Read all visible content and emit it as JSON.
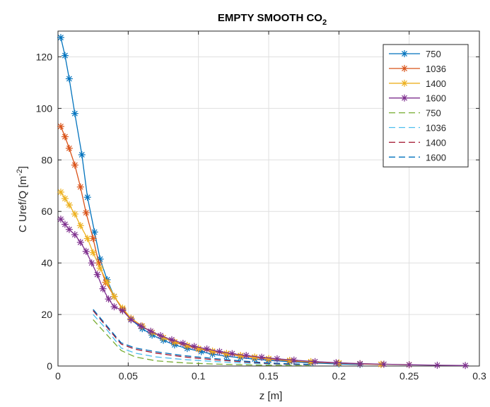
{
  "chart_data": {
    "type": "line",
    "title": "EMPTY SMOOTH CO",
    "title_subscript": "2",
    "xlabel": "z [m]",
    "ylabel": "C Uref/Q [m",
    "ylabel_superscript": "-2",
    "ylabel_suffix": "]",
    "xlim": [
      0,
      0.3
    ],
    "ylim": [
      0,
      130
    ],
    "xticks": [
      0,
      0.05,
      0.1,
      0.15,
      0.2,
      0.25,
      0.3
    ],
    "xtick_labels": [
      "0",
      "0.05",
      "0.1",
      "0.15",
      "0.2",
      "0.25",
      "0.3"
    ],
    "yticks": [
      0,
      20,
      40,
      60,
      80,
      100,
      120
    ],
    "ytick_labels": [
      "0",
      "20",
      "40",
      "60",
      "80",
      "100",
      "120"
    ],
    "grid": true,
    "legend_position": "top-right",
    "series": [
      {
        "name": "750",
        "color": "#0072BD",
        "style": "solid",
        "marker": "asterisk",
        "x": [
          0.002,
          0.005,
          0.008,
          0.012,
          0.017,
          0.021,
          0.026,
          0.03,
          0.035,
          0.04,
          0.046,
          0.052,
          0.06,
          0.067,
          0.075,
          0.083,
          0.092,
          0.102,
          0.11,
          0.12,
          0.13,
          0.14,
          0.15,
          0.165,
          0.18,
          0.2,
          0.215
        ],
        "y": [
          127.5,
          120.5,
          111.5,
          98,
          82,
          65.5,
          52,
          41.5,
          33.5,
          27,
          22,
          18,
          14.5,
          12,
          10,
          8.2,
          6.8,
          5.6,
          4.6,
          3.8,
          3.2,
          2.7,
          2.2,
          1.7,
          1.2,
          0.8,
          0.6
        ]
      },
      {
        "name": "1036",
        "color": "#D95319",
        "style": "solid",
        "marker": "asterisk",
        "x": [
          0.002,
          0.005,
          0.008,
          0.012,
          0.016,
          0.02,
          0.025,
          0.029,
          0.034,
          0.04,
          0.046,
          0.052,
          0.06,
          0.067,
          0.075,
          0.083,
          0.092,
          0.1,
          0.11,
          0.12,
          0.13,
          0.14,
          0.15,
          0.165,
          0.18,
          0.2,
          0.215,
          0.23
        ],
        "y": [
          93,
          89,
          84.5,
          78,
          69.5,
          59.5,
          49.5,
          40,
          32.5,
          27,
          22,
          18.5,
          15.5,
          13,
          11,
          9.2,
          7.8,
          6.6,
          5.6,
          4.7,
          3.9,
          3.3,
          2.7,
          2.0,
          1.5,
          1.1,
          0.8,
          0.6
        ]
      },
      {
        "name": "1400",
        "color": "#EDB120",
        "style": "solid",
        "marker": "asterisk",
        "x": [
          0.002,
          0.005,
          0.008,
          0.012,
          0.016,
          0.021,
          0.025,
          0.03,
          0.035,
          0.04,
          0.046,
          0.052,
          0.06,
          0.067,
          0.075,
          0.083,
          0.092,
          0.1,
          0.11,
          0.12,
          0.13,
          0.14,
          0.15,
          0.165,
          0.18,
          0.2,
          0.215,
          0.23,
          0.25
        ],
        "y": [
          67.5,
          65,
          62.5,
          59,
          54.5,
          49.5,
          44,
          38,
          32.5,
          27,
          22.5,
          18.5,
          15.5,
          13,
          11,
          9.4,
          8.0,
          6.8,
          5.8,
          4.9,
          4.1,
          3.5,
          2.9,
          2.2,
          1.7,
          1.2,
          0.9,
          0.7,
          0.5
        ]
      },
      {
        "name": "1600",
        "color": "#7E2F8E",
        "style": "solid",
        "marker": "asterisk",
        "x": [
          0.002,
          0.005,
          0.008,
          0.012,
          0.016,
          0.02,
          0.024,
          0.028,
          0.032,
          0.036,
          0.04,
          0.046,
          0.052,
          0.059,
          0.066,
          0.073,
          0.081,
          0.089,
          0.097,
          0.106,
          0.115,
          0.124,
          0.134,
          0.145,
          0.156,
          0.168,
          0.183,
          0.198,
          0.215,
          0.232,
          0.25,
          0.27,
          0.29
        ],
        "y": [
          57,
          55,
          53,
          51,
          48,
          44.5,
          40,
          35.5,
          30,
          26,
          23,
          21.5,
          18,
          15.5,
          13.5,
          11.8,
          10.2,
          8.8,
          7.6,
          6.6,
          5.6,
          4.8,
          4.1,
          3.4,
          2.8,
          2.3,
          1.7,
          1.3,
          0.9,
          0.7,
          0.5,
          0.3,
          0.2
        ]
      },
      {
        "name": "750",
        "color": "#77AC30",
        "style": "dashed",
        "marker": "none",
        "x": [
          0.025,
          0.035,
          0.045,
          0.055,
          0.07,
          0.09,
          0.11,
          0.13,
          0.15,
          0.18
        ],
        "y": [
          18,
          12,
          6,
          3.5,
          2,
          1.2,
          0.8,
          0.5,
          0.3,
          0.2
        ]
      },
      {
        "name": "1036",
        "color": "#4DBEEE",
        "style": "dashed",
        "marker": "none",
        "x": [
          0.025,
          0.035,
          0.045,
          0.055,
          0.07,
          0.09,
          0.11,
          0.13,
          0.15,
          0.18
        ],
        "y": [
          20,
          14,
          7,
          5,
          3.5,
          2.5,
          1.8,
          1.2,
          0.8,
          0.4
        ]
      },
      {
        "name": "1400",
        "color": "#A2142F",
        "style": "dashed",
        "marker": "none",
        "x": [
          0.025,
          0.035,
          0.045,
          0.055,
          0.07,
          0.09,
          0.11,
          0.13,
          0.15,
          0.18
        ],
        "y": [
          21.5,
          15,
          8.5,
          6.5,
          5,
          3.5,
          2.5,
          1.7,
          1,
          0.5
        ]
      },
      {
        "name": "1600",
        "color": "#0072BD",
        "style": "dashed",
        "marker": "none",
        "x": [
          0.025,
          0.035,
          0.045,
          0.055,
          0.07,
          0.09,
          0.11,
          0.13,
          0.15,
          0.18
        ],
        "y": [
          22,
          15.5,
          9,
          7,
          5.5,
          4,
          3,
          2,
          1.2,
          0.6
        ]
      }
    ]
  }
}
